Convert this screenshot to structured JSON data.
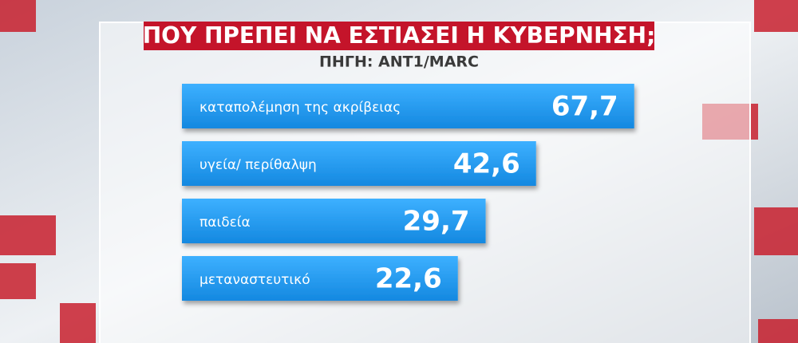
{
  "chart_data": {
    "type": "bar",
    "orientation": "horizontal",
    "title": "ΠΟΥ ΠΡΕΠΕΙ ΝΑ ΕΣΤΙΑΣΕΙ Η ΚΥΒΕΡΝΗΣΗ;",
    "subtitle": "ΠΗΓΗ: ANT1/MARC",
    "categories": [
      "καταπολέμηση της ακρίβειας",
      "υγεία/ περίθαλψη",
      "παιδεία",
      "μεταναστευτικό"
    ],
    "values": [
      67.7,
      42.6,
      29.7,
      22.6
    ],
    "value_labels": [
      "67,7",
      "42,6",
      "29,7",
      "22,6"
    ],
    "color": "#1e9af0",
    "xlim": [
      0,
      80
    ]
  }
}
